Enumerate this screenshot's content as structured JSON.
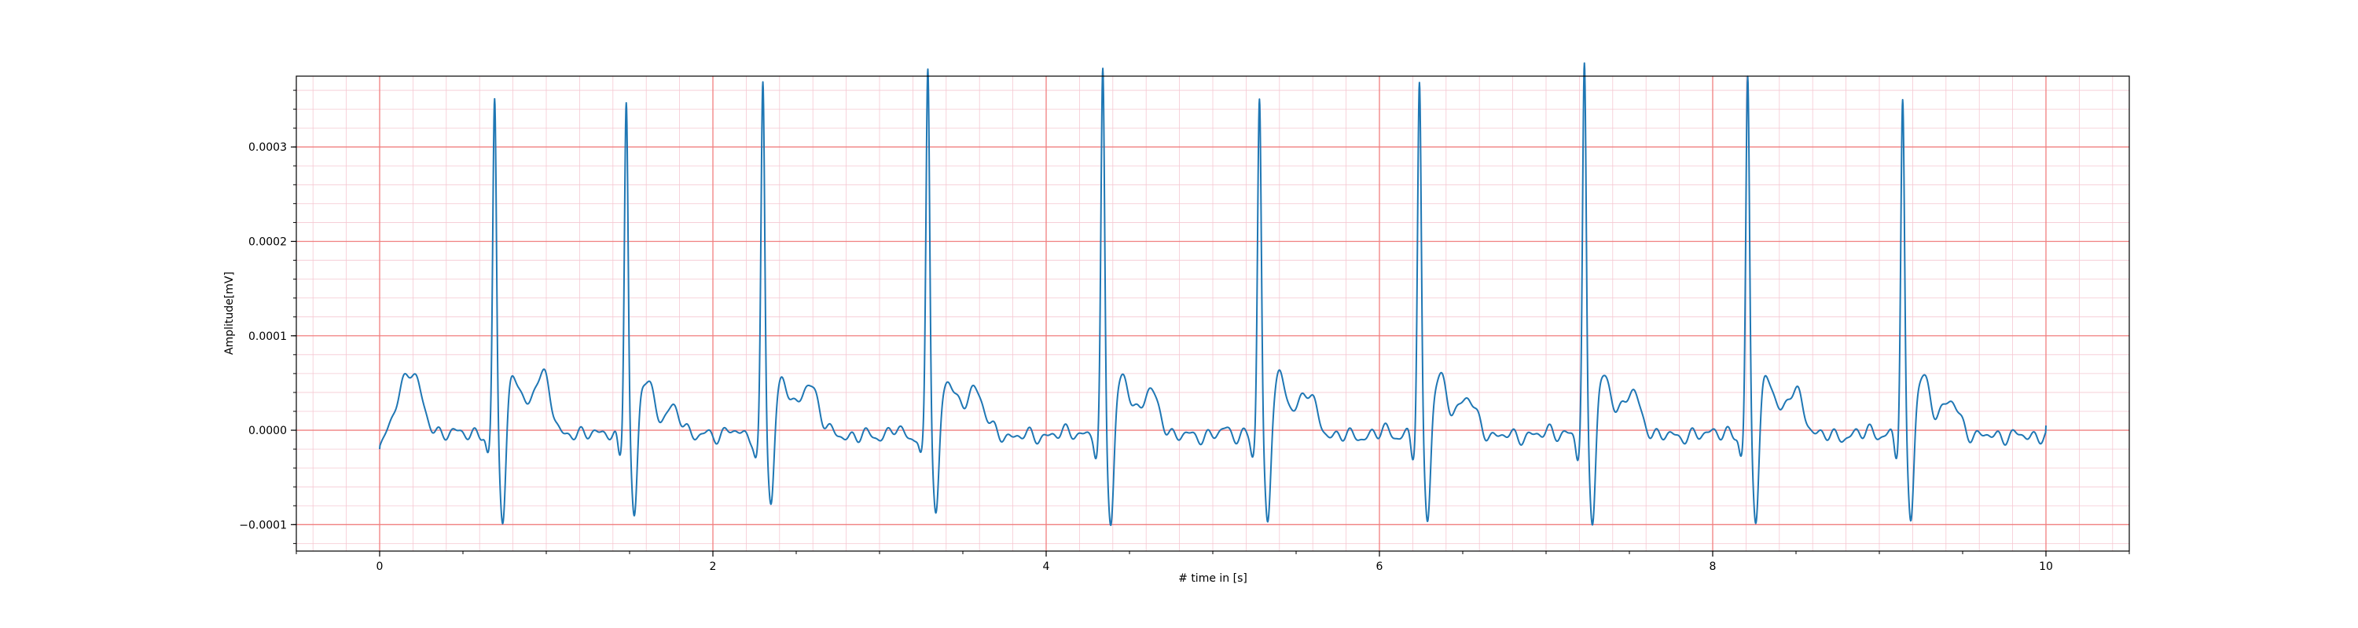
{
  "chart_data": {
    "type": "line",
    "title": "",
    "xlabel": "# time in [s]",
    "ylabel": "Amplitude[mV]",
    "xlim": [
      -0.5,
      10.5
    ],
    "ylim": [
      -0.000128,
      0.000375
    ],
    "x_ticks": [
      0,
      2,
      4,
      6,
      8,
      10
    ],
    "x_tick_labels": [
      "0",
      "2",
      "4",
      "6",
      "8",
      "10"
    ],
    "y_ticks": [
      -0.0001,
      0.0,
      0.0001,
      0.0002,
      0.0003
    ],
    "y_tick_labels": [
      "−0.0001",
      "0.0000",
      "0.0001",
      "0.0002",
      "0.0003"
    ],
    "grid": {
      "major": true,
      "minor": true,
      "major_color": "#f08080",
      "minor_color": "#f5c8d2"
    },
    "line_color": "#1f77b4",
    "r_peaks_s": [
      0.69,
      1.48,
      2.3,
      3.29,
      4.34,
      5.28,
      6.24,
      7.23,
      8.21,
      9.14
    ],
    "r_peak_amplitudes": [
      0.000318,
      0.000318,
      0.000333,
      0.00035,
      0.000346,
      0.000317,
      0.000331,
      0.00035,
      0.00034,
      0.000316
    ],
    "s_trough_amplitudes": [
      -0.0001,
      -0.0001,
      -8.7e-05,
      -0.0001,
      -0.000104,
      -0.000103,
      -0.0001,
      -0.0001,
      -0.0001,
      -0.0001
    ],
    "t_wave_amplitudes": [
      5e-05,
      1.2e-05,
      4e-05,
      3.6e-05,
      3.2e-05,
      3.2e-05,
      2.6e-05,
      3.1e-05,
      3.2e-05,
      2.2e-05
    ],
    "start_value": -2e-05,
    "end_value": 5e-06,
    "legend": "none"
  }
}
